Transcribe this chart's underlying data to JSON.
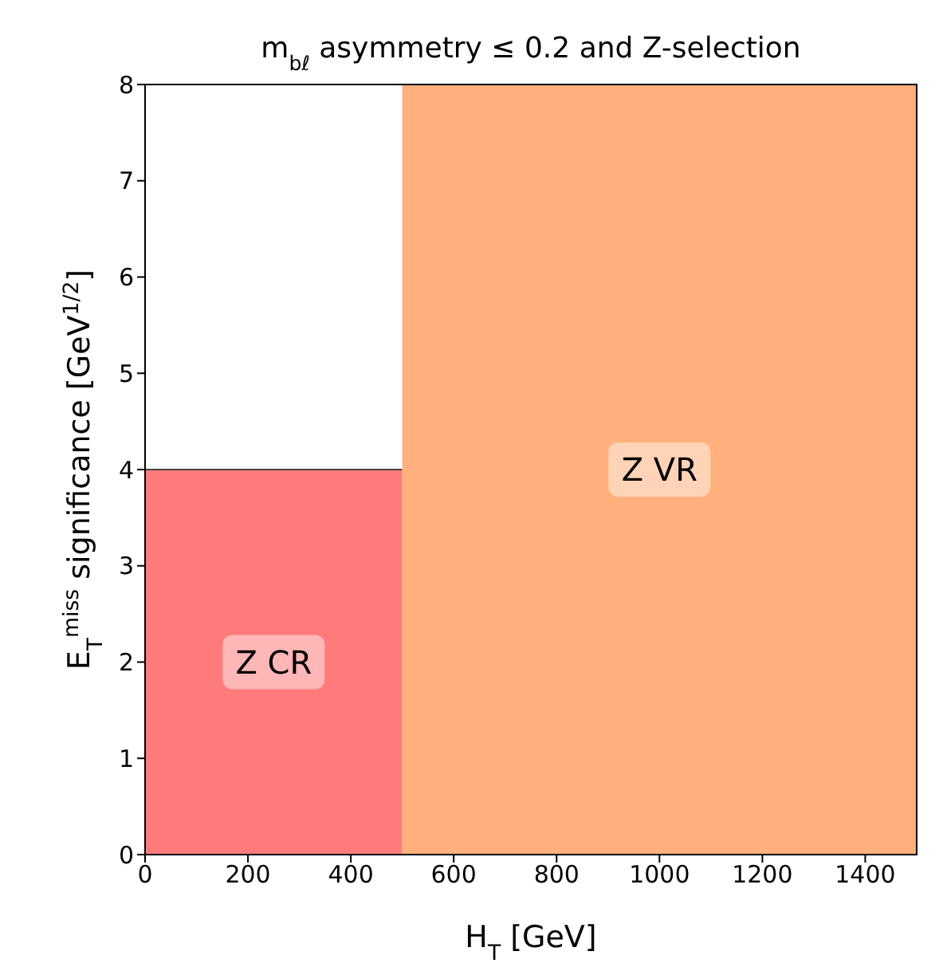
{
  "chart_data": {
    "type": "area",
    "title": "m$_{bℓ}$ asymmetry ≤ 0.2 and Z-selection",
    "xlabel": "H$_{T}$ [GeV]",
    "ylabel": "E$_{T}$$^{miss}$ significance [GeV$^{1/2}$]",
    "series": [
      {
        "name": "Z CR",
        "color": "#ff7b7b",
        "x": [
          0,
          500
        ],
        "values": [
          4,
          4
        ]
      },
      {
        "name": "Z VR",
        "color": "#ffb07c",
        "x": [
          500,
          1500
        ],
        "values": [
          8,
          8
        ]
      }
    ],
    "xlim": [
      0,
      1500
    ],
    "xticks": [
      0,
      200,
      400,
      600,
      800,
      1000,
      1200,
      1400
    ],
    "ylim": [
      0,
      8
    ],
    "yticks": [
      0,
      1,
      2,
      3,
      4,
      5,
      6,
      7,
      8
    ],
    "grid": false,
    "legend": false
  }
}
